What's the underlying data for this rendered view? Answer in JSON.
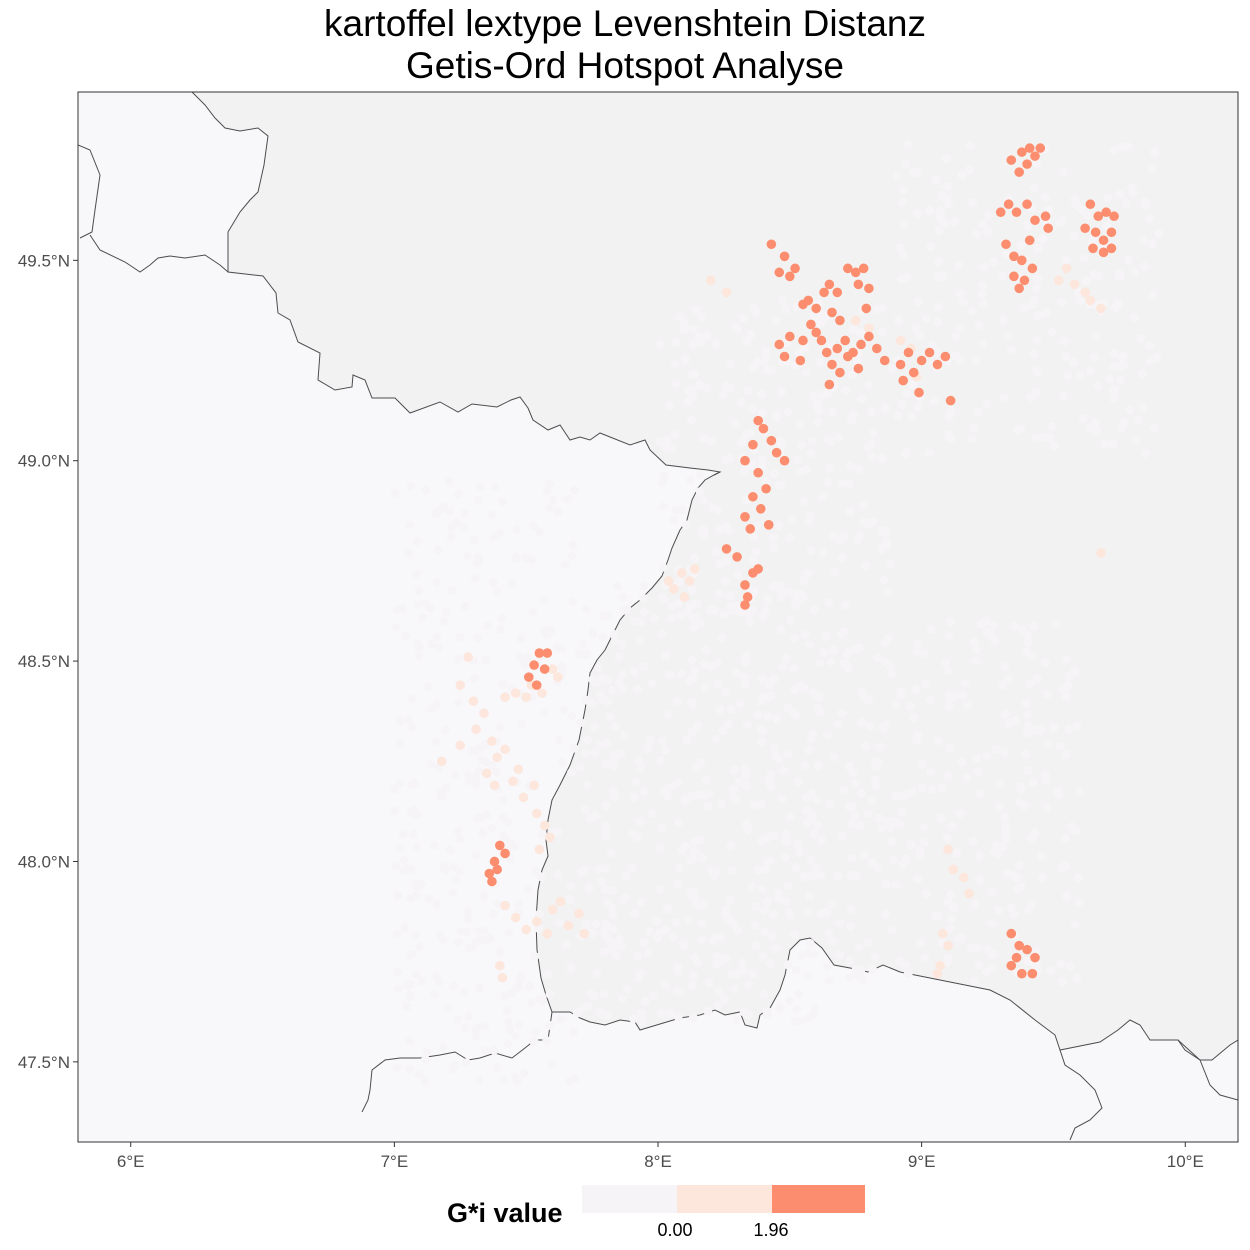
{
  "title_line1": "kartoffel lextype Levenshtein Distanz",
  "title_line2": "Getis-Ord Hotspot Analyse",
  "map": {
    "lon_range": [
      5.8,
      10.2
    ],
    "lat_range": [
      47.3,
      49.92
    ],
    "x_ticks": [
      {
        "value": 6,
        "label": "6°E"
      },
      {
        "value": 7,
        "label": "7°E"
      },
      {
        "value": 8,
        "label": "8°E"
      },
      {
        "value": 9,
        "label": "9°E"
      },
      {
        "value": 10,
        "label": "10°E"
      }
    ],
    "y_ticks": [
      {
        "value": 47.5,
        "label": "47.5°N"
      },
      {
        "value": 48.0,
        "label": "48.0°N"
      },
      {
        "value": 48.5,
        "label": "48.5°N"
      },
      {
        "value": 49.0,
        "label": "49.0°N"
      }
    ],
    "y_tick_top": {
      "value": 49.5,
      "label": "49.5°N"
    },
    "colors": {
      "land_foreign": "#f8f8fb",
      "land_germany": "#f2f2f2",
      "border": "#4d4d4d",
      "hot": "#fc8d6e",
      "warm": "#fde6dc",
      "neutral": "#f7f4f7"
    }
  },
  "hotspots": [
    {
      "class": "significant",
      "points": [
        [
          8.43,
          49.54
        ],
        [
          8.48,
          49.51
        ],
        [
          8.52,
          49.48
        ],
        [
          8.5,
          49.46
        ],
        [
          8.46,
          49.47
        ],
        [
          8.57,
          49.4
        ],
        [
          8.6,
          49.38
        ],
        [
          8.55,
          49.39
        ],
        [
          8.63,
          49.42
        ],
        [
          8.65,
          49.44
        ],
        [
          8.68,
          49.42
        ],
        [
          8.72,
          49.48
        ],
        [
          8.75,
          49.47
        ],
        [
          8.78,
          49.48
        ],
        [
          8.76,
          49.44
        ],
        [
          8.8,
          49.43
        ],
        [
          8.79,
          49.38
        ],
        [
          8.66,
          49.37
        ],
        [
          8.69,
          49.35
        ],
        [
          8.58,
          49.34
        ],
        [
          8.6,
          49.32
        ],
        [
          8.55,
          49.3
        ],
        [
          8.5,
          49.31
        ],
        [
          8.46,
          49.29
        ],
        [
          8.48,
          49.26
        ],
        [
          8.54,
          49.25
        ],
        [
          8.62,
          49.3
        ],
        [
          8.64,
          49.27
        ],
        [
          8.68,
          49.28
        ],
        [
          8.71,
          49.3
        ],
        [
          8.74,
          49.27
        ],
        [
          8.77,
          49.29
        ],
        [
          8.8,
          49.31
        ],
        [
          8.83,
          49.28
        ],
        [
          8.86,
          49.25
        ],
        [
          8.66,
          49.24
        ],
        [
          8.69,
          49.22
        ],
        [
          8.65,
          49.19
        ],
        [
          8.72,
          49.26
        ],
        [
          8.76,
          49.23
        ],
        [
          8.92,
          49.24
        ],
        [
          8.95,
          49.27
        ],
        [
          8.97,
          49.22
        ],
        [
          8.93,
          49.2
        ],
        [
          9.0,
          49.25
        ],
        [
          9.03,
          49.27
        ],
        [
          9.06,
          49.24
        ],
        [
          9.09,
          49.26
        ],
        [
          9.11,
          49.15
        ],
        [
          8.99,
          49.17
        ],
        [
          8.38,
          49.1
        ],
        [
          8.4,
          49.08
        ],
        [
          8.36,
          49.04
        ],
        [
          8.43,
          49.05
        ],
        [
          8.45,
          49.02
        ],
        [
          8.48,
          49.0
        ],
        [
          8.33,
          49.0
        ],
        [
          8.38,
          48.97
        ],
        [
          8.41,
          48.93
        ],
        [
          8.36,
          48.91
        ],
        [
          8.39,
          48.88
        ],
        [
          8.33,
          48.86
        ],
        [
          8.35,
          48.83
        ],
        [
          8.42,
          48.84
        ],
        [
          8.26,
          48.78
        ],
        [
          8.3,
          48.76
        ],
        [
          8.36,
          48.72
        ],
        [
          8.33,
          48.69
        ],
        [
          8.38,
          48.73
        ],
        [
          8.34,
          48.66
        ],
        [
          8.33,
          48.64
        ],
        [
          7.55,
          48.52
        ],
        [
          7.58,
          48.52
        ],
        [
          7.53,
          48.49
        ],
        [
          7.57,
          48.48
        ],
        [
          7.51,
          48.46
        ],
        [
          7.54,
          48.44
        ],
        [
          7.4,
          48.04
        ],
        [
          7.42,
          48.02
        ],
        [
          7.38,
          48.0
        ],
        [
          7.39,
          47.98
        ],
        [
          7.37,
          47.95
        ],
        [
          7.36,
          47.97
        ],
        [
          9.34,
          49.75
        ],
        [
          9.38,
          49.77
        ],
        [
          9.4,
          49.74
        ],
        [
          9.43,
          49.76
        ],
        [
          9.41,
          49.78
        ],
        [
          9.37,
          49.72
        ],
        [
          9.45,
          49.78
        ],
        [
          9.3,
          49.62
        ],
        [
          9.33,
          49.64
        ],
        [
          9.36,
          49.62
        ],
        [
          9.4,
          49.64
        ],
        [
          9.43,
          49.6
        ],
        [
          9.47,
          49.61
        ],
        [
          9.48,
          49.58
        ],
        [
          9.41,
          49.55
        ],
        [
          9.32,
          49.54
        ],
        [
          9.35,
          49.51
        ],
        [
          9.38,
          49.5
        ],
        [
          9.42,
          49.48
        ],
        [
          9.39,
          49.45
        ],
        [
          9.35,
          49.46
        ],
        [
          9.37,
          49.43
        ],
        [
          9.64,
          49.64
        ],
        [
          9.67,
          49.61
        ],
        [
          9.7,
          49.62
        ],
        [
          9.73,
          49.61
        ],
        [
          9.66,
          49.57
        ],
        [
          9.69,
          49.55
        ],
        [
          9.72,
          49.57
        ],
        [
          9.62,
          49.58
        ],
        [
          9.65,
          49.53
        ],
        [
          9.69,
          49.52
        ],
        [
          9.72,
          49.53
        ],
        [
          9.34,
          47.82
        ],
        [
          9.37,
          47.79
        ],
        [
          9.4,
          47.78
        ],
        [
          9.36,
          47.76
        ],
        [
          9.34,
          47.74
        ],
        [
          9.38,
          47.72
        ],
        [
          9.42,
          47.72
        ],
        [
          9.43,
          47.76
        ]
      ]
    },
    {
      "class": "elevated",
      "points": [
        [
          7.28,
          48.51
        ],
        [
          7.25,
          48.44
        ],
        [
          7.3,
          48.4
        ],
        [
          7.31,
          48.33
        ],
        [
          7.34,
          48.37
        ],
        [
          7.37,
          48.3
        ],
        [
          7.39,
          48.26
        ],
        [
          7.42,
          48.28
        ],
        [
          7.47,
          48.23
        ],
        [
          7.45,
          48.2
        ],
        [
          7.49,
          48.16
        ],
        [
          7.53,
          48.19
        ],
        [
          7.35,
          48.22
        ],
        [
          7.38,
          48.19
        ],
        [
          7.42,
          48.41
        ],
        [
          7.46,
          48.42
        ],
        [
          7.5,
          48.41
        ],
        [
          7.52,
          48.44
        ],
        [
          7.56,
          48.42
        ],
        [
          7.6,
          48.48
        ],
        [
          7.62,
          48.46
        ],
        [
          7.18,
          48.25
        ],
        [
          7.25,
          48.29
        ],
        [
          7.54,
          48.12
        ],
        [
          7.57,
          48.09
        ],
        [
          7.59,
          48.06
        ],
        [
          7.55,
          48.03
        ],
        [
          7.42,
          47.89
        ],
        [
          7.46,
          47.86
        ],
        [
          7.5,
          47.83
        ],
        [
          7.54,
          47.85
        ],
        [
          7.58,
          47.82
        ],
        [
          7.6,
          47.88
        ],
        [
          7.63,
          47.9
        ],
        [
          7.66,
          47.84
        ],
        [
          7.7,
          47.87
        ],
        [
          7.72,
          47.82
        ],
        [
          7.4,
          47.74
        ],
        [
          7.41,
          47.71
        ],
        [
          8.09,
          48.72
        ],
        [
          8.12,
          48.7
        ],
        [
          8.06,
          48.68
        ],
        [
          8.1,
          48.66
        ],
        [
          8.04,
          48.7
        ],
        [
          8.14,
          48.73
        ],
        [
          8.2,
          49.45
        ],
        [
          8.26,
          49.42
        ],
        [
          8.75,
          49.35
        ],
        [
          8.8,
          49.33
        ],
        [
          8.92,
          49.3
        ],
        [
          8.96,
          49.28
        ],
        [
          8.98,
          49.21
        ],
        [
          9.52,
          49.45
        ],
        [
          9.55,
          49.48
        ],
        [
          9.58,
          49.44
        ],
        [
          9.64,
          49.4
        ],
        [
          9.68,
          49.38
        ],
        [
          9.62,
          49.42
        ],
        [
          9.1,
          48.03
        ],
        [
          9.12,
          47.98
        ],
        [
          9.16,
          47.96
        ],
        [
          9.18,
          47.92
        ],
        [
          9.08,
          47.82
        ],
        [
          9.1,
          47.79
        ],
        [
          9.07,
          47.74
        ],
        [
          9.06,
          47.72
        ],
        [
          9.68,
          48.77
        ]
      ]
    }
  ],
  "background_points_class": "not-significant",
  "legend": {
    "title": "G*i value",
    "tick_labels": [
      "0.00",
      "1.96"
    ],
    "swatches": [
      "not-significant",
      "elevated",
      "significant"
    ]
  }
}
